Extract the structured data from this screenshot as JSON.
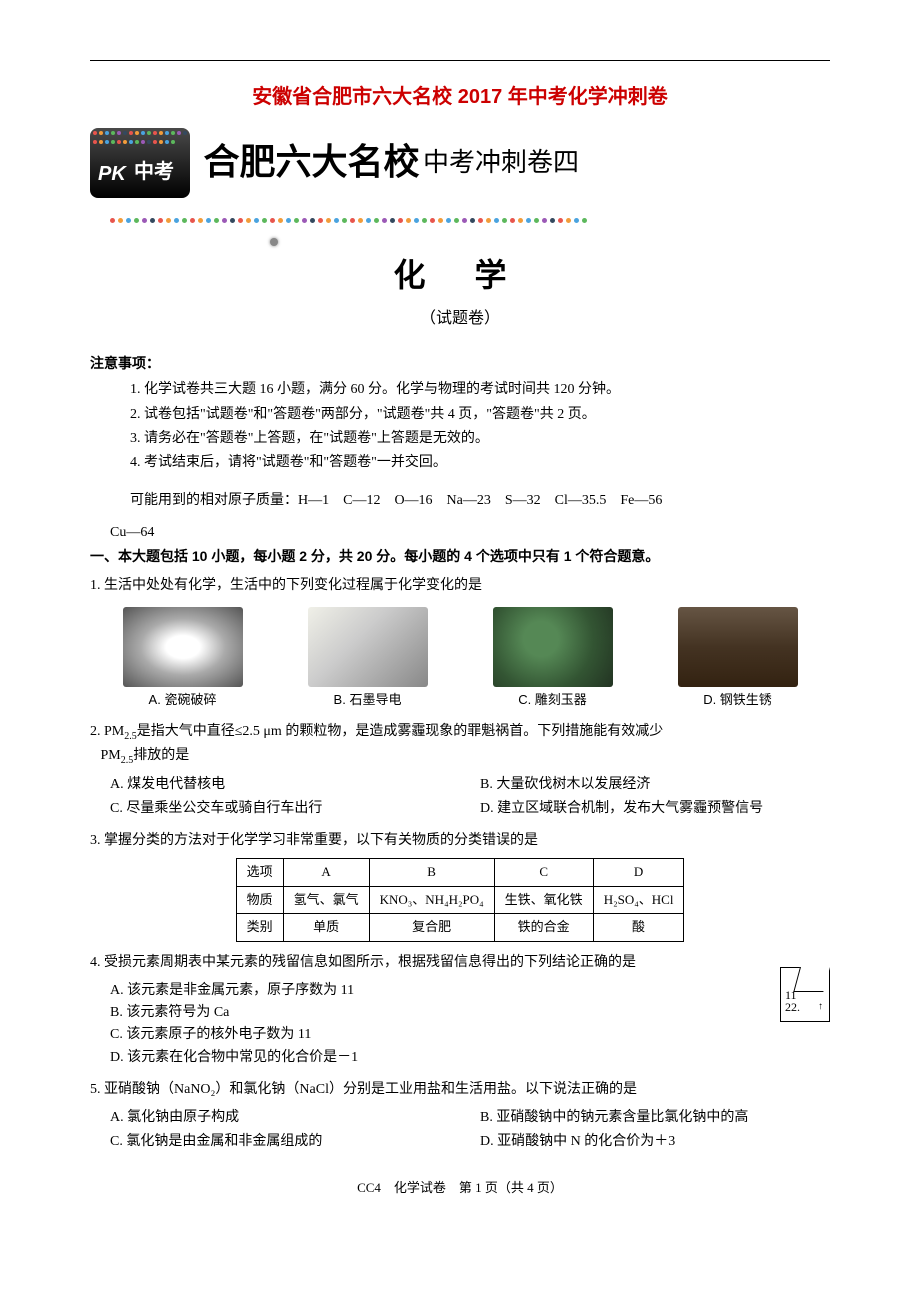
{
  "page": {
    "main_title": "安徽省合肥市六大名校 2017 年中考化学冲刺卷",
    "header_school": "合肥六大名校",
    "header_suffix": "中考冲刺卷四",
    "pk_label": "PK",
    "pk_zhong": "中考",
    "subject": "化 学",
    "exam_type": "（试题卷）",
    "notice_title": "注意事项：",
    "notices": [
      "1. 化学试卷共三大题 16 小题，满分 60 分。化学与物理的考试时间共 120 分钟。",
      "2. 试卷包括\"试题卷\"和\"答题卷\"两部分，\"试题卷\"共 4 页，\"答题卷\"共 2 页。",
      "3. 请务必在\"答题卷\"上答题，在\"试题卷\"上答题是无效的。",
      "4. 考试结束后，请将\"试题卷\"和\"答题卷\"一并交回。"
    ],
    "atomic_mass_label": "可能用到的相对原子质量：",
    "atomic_mass_values": "H—1　C—12　O—16　Na—23　S—32　Cl—35.5　Fe—56",
    "atomic_mass_cu": "Cu—64",
    "section1_title": "一、本大题包括 10 小题，每小题 2 分，共 20 分。每小题的 4 个选项中只有 1 个符合题意。",
    "footer": "CC4　化学试卷　第 1 页（共 4 页）",
    "page_number": "1"
  },
  "q1": {
    "text": "1. 生活中处处有化学，生活中的下列变化过程属于化学变化的是",
    "optA": "A. 瓷碗破碎",
    "optB": "B. 石墨导电",
    "optC": "C. 雕刻玉器",
    "optD": "D. 钢铁生锈"
  },
  "q2": {
    "text1": "2. PM",
    "sub": "2.5",
    "text2": "是指大气中直径≤2.5 μm 的颗粒物，是造成雾霾现象的罪魁祸首。下列措施能有效减少",
    "text3": "排放的是",
    "optA": "A. 煤发电代替核电",
    "optB": "B. 大量砍伐树木以发展经济",
    "optC": "C. 尽量乘坐公交车或骑自行车出行",
    "optD": "D. 建立区域联合机制，发布大气雾霾预警信号"
  },
  "q3": {
    "text": "3. 掌握分类的方法对于化学学习非常重要，以下有关物质的分类错误的是",
    "headers": [
      "选项",
      "A",
      "B",
      "C",
      "D"
    ],
    "row1_label": "物质",
    "row1": [
      "氢气、氯气",
      "KNO₃、NH₄H₂PO₄",
      "生铁、氧化铁",
      "H₂SO₄、HCl"
    ],
    "row2_label": "类别",
    "row2": [
      "单质",
      "复合肥",
      "铁的合金",
      "酸"
    ]
  },
  "q4": {
    "text": "4. 受损元素周期表中某元素的残留信息如图所示，根据残留信息得出的下列结论正确的是",
    "optA": "A. 该元素是非金属元素，原子序数为 11",
    "optB": "B. 该元素符号为 Ca",
    "optC": "C. 该元素原子的核外电子数为 11",
    "optD": "D. 该元素在化合物中常见的化合价是－1",
    "box_num1": "11",
    "box_num2": "22."
  },
  "q5": {
    "text": "5. 亚硝酸钠（NaNO₂）和氯化钠（NaCl）分别是工业用盐和生活用盐。以下说法正确的是",
    "optA": "A. 氯化钠由原子构成",
    "optB": "B. 亚硝酸钠中的钠元素含量比氯化钠中的高",
    "optC": "C. 氯化钠是由金属和非金属组成的",
    "optD": "D. 亚硝酸钠中 N 的化合价为＋3"
  },
  "colors": {
    "dot_colors": [
      "#e8554d",
      "#f29c3a",
      "#4aa3df",
      "#5cb85c",
      "#9b59b6",
      "#34495e",
      "#e8554d",
      "#f29c3a",
      "#4aa3df",
      "#5cb85c"
    ],
    "title_color": "#cc0000"
  }
}
